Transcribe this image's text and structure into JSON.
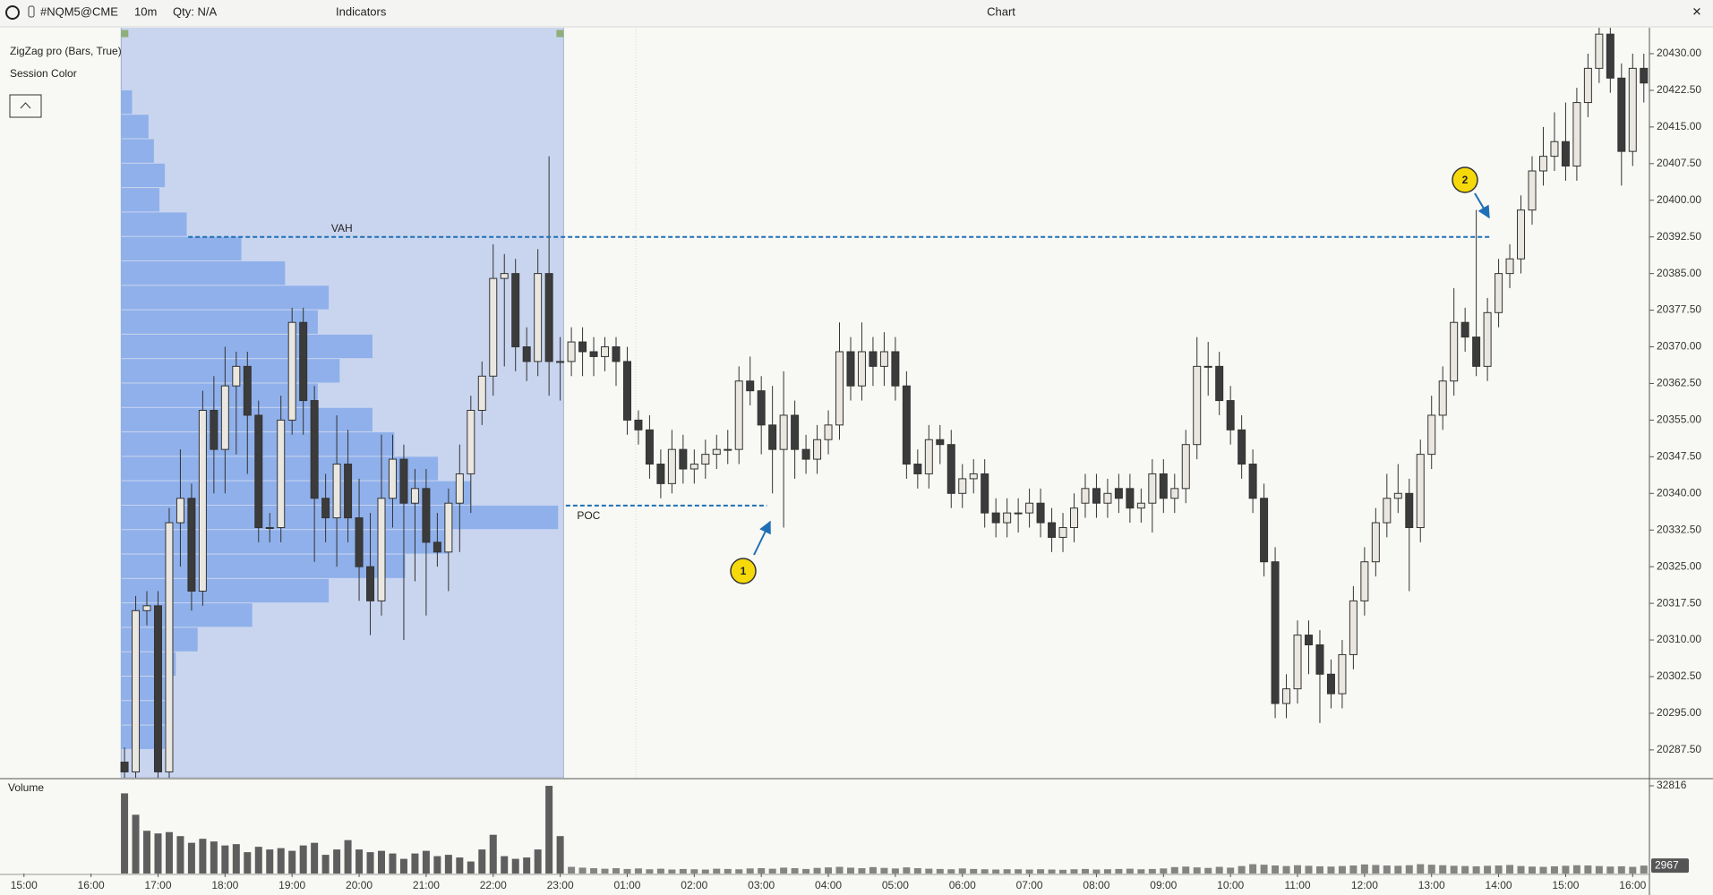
{
  "toolbar": {
    "symbol": "#NQM5@CME",
    "interval": "10m",
    "qty": "Qty: N/A",
    "indicators": "Indicators",
    "title": "Chart"
  },
  "chart_data": {
    "type": "candlestick",
    "indicator_labels": [
      "ZigZag pro (Bars, True)",
      "Session Color"
    ],
    "up_color": "#e9e7e0",
    "down_color": "#3b3b3b",
    "open": [
      20285,
      20283,
      20316,
      20317,
      20283,
      20334,
      20339,
      20320,
      20357,
      20349,
      20362,
      20366,
      20356,
      20333,
      20333,
      20355,
      20375,
      20359,
      20339,
      20335,
      20346,
      20335,
      20325,
      20318,
      20339,
      20347,
      20338,
      20341,
      20330,
      20328,
      20338,
      20344,
      20357,
      20364,
      20384,
      20385,
      20370,
      20367,
      20385,
      20367,
      20367,
      20371,
      20369,
      20368,
      20370,
      20367,
      20355,
      20353,
      20346,
      20342,
      20349,
      20345,
      20346,
      20348,
      20349,
      20349,
      20363,
      20361,
      20354,
      20349,
      20356,
      20349,
      20347,
      20351,
      20354,
      20369,
      20362,
      20369,
      20366,
      20369,
      20362,
      20346,
      20344,
      20351,
      20350,
      20340,
      20343,
      20344,
      20336,
      20334,
      20336,
      20336,
      20338,
      20334,
      20331,
      20333,
      20338,
      20341,
      20338,
      20341,
      20341,
      20337,
      20338,
      20344,
      20339,
      20341,
      20350,
      20366,
      20366,
      20359,
      20353,
      20346,
      20339,
      20326,
      20297,
      20300,
      20311,
      20309,
      20303,
      20299,
      20307,
      20318,
      20326,
      20334,
      20339,
      20340,
      20333,
      20348,
      20356,
      20363,
      20375,
      20372,
      20366,
      20377,
      20385,
      20388,
      20398,
      20406,
      20409,
      20412,
      20407,
      20420,
      20427,
      20434,
      20425,
      20410,
      20427
    ],
    "high": [
      20288,
      20319,
      20320,
      20320,
      20337,
      20349,
      20342,
      20361,
      20364,
      20370,
      20369,
      20369,
      20359,
      20336,
      20360,
      20378,
      20378,
      20362,
      20344,
      20356,
      20353,
      20343,
      20336,
      20352,
      20352,
      20350,
      20345,
      20345,
      20336,
      20341,
      20350,
      20360,
      20367,
      20391,
      20389,
      20388,
      20374,
      20390,
      20409,
      20372,
      20374,
      20374,
      20372,
      20372,
      20372,
      20370,
      20357,
      20356,
      20349,
      20353,
      20352,
      20349,
      20351,
      20352,
      20353,
      20366,
      20368,
      20364,
      20362,
      20365,
      20359,
      20352,
      20354,
      20357,
      20375,
      20372,
      20375,
      20372,
      20373,
      20372,
      20365,
      20349,
      20354,
      20354,
      20353,
      20346,
      20347,
      20347,
      20339,
      20339,
      20339,
      20341,
      20341,
      20337,
      20336,
      20340,
      20344,
      20344,
      20343,
      20344,
      20344,
      20341,
      20347,
      20347,
      20344,
      20353,
      20372,
      20371,
      20369,
      20362,
      20356,
      20349,
      20342,
      20329,
      20303,
      20314,
      20314,
      20312,
      20306,
      20310,
      20321,
      20329,
      20337,
      20344,
      20346,
      20343,
      20351,
      20360,
      20366,
      20382,
      20378,
      20398,
      20380,
      20388,
      20391,
      20401,
      20409,
      20415,
      20418,
      20420,
      20423,
      20430,
      20437,
      20437,
      20428,
      20430,
      20430
    ],
    "low": [
      20280,
      20280,
      20313,
      20280,
      20280,
      20325,
      20316,
      20317,
      20340,
      20340,
      20348,
      20344,
      20330,
      20330,
      20330,
      20352,
      20352,
      20326,
      20330,
      20325,
      20330,
      20318,
      20311,
      20315,
      20333,
      20310,
      20322,
      20315,
      20325,
      20320,
      20328,
      20336,
      20354,
      20360,
      20366,
      20365,
      20363,
      20364,
      20360,
      20359,
      20364,
      20364,
      20364,
      20365,
      20362,
      20352,
      20350,
      20343,
      20339,
      20340,
      20342,
      20342,
      20343,
      20345,
      20346,
      20346,
      20358,
      20348,
      20340,
      20333,
      20343,
      20344,
      20344,
      20348,
      20351,
      20359,
      20359,
      20362,
      20362,
      20359,
      20343,
      20341,
      20341,
      20346,
      20337,
      20337,
      20340,
      20333,
      20331,
      20331,
      20332,
      20333,
      20331,
      20328,
      20328,
      20330,
      20335,
      20335,
      20335,
      20336,
      20334,
      20334,
      20332,
      20336,
      20336,
      20338,
      20347,
      20360,
      20356,
      20350,
      20343,
      20336,
      20323,
      20294,
      20294,
      20297,
      20303,
      20293,
      20296,
      20296,
      20304,
      20315,
      20323,
      20331,
      20336,
      20320,
      20330,
      20345,
      20353,
      20360,
      20369,
      20364,
      20363,
      20374,
      20382,
      20385,
      20395,
      20403,
      20406,
      20404,
      20404,
      20417,
      20424,
      20422,
      20403,
      20407,
      20420
    ],
    "close": [
      20283,
      20316,
      20317,
      20283,
      20334,
      20339,
      20320,
      20357,
      20349,
      20362,
      20366,
      20356,
      20333,
      20333,
      20355,
      20375,
      20359,
      20339,
      20335,
      20346,
      20335,
      20325,
      20318,
      20339,
      20347,
      20338,
      20341,
      20330,
      20328,
      20338,
      20344,
      20357,
      20364,
      20384,
      20385,
      20370,
      20367,
      20385,
      20367,
      20367,
      20371,
      20369,
      20368,
      20370,
      20367,
      20355,
      20353,
      20346,
      20342,
      20349,
      20345,
      20346,
      20348,
      20349,
      20349,
      20363,
      20361,
      20354,
      20349,
      20356,
      20349,
      20347,
      20351,
      20354,
      20369,
      20362,
      20369,
      20366,
      20369,
      20362,
      20346,
      20344,
      20351,
      20350,
      20340,
      20343,
      20344,
      20336,
      20334,
      20336,
      20336,
      20338,
      20334,
      20331,
      20333,
      20337,
      20341,
      20338,
      20340,
      20339,
      20337,
      20338,
      20344,
      20339,
      20341,
      20350,
      20366,
      20366,
      20359,
      20353,
      20346,
      20339,
      20326,
      20297,
      20300,
      20311,
      20309,
      20303,
      20299,
      20307,
      20318,
      20326,
      20334,
      20339,
      20340,
      20333,
      20348,
      20356,
      20363,
      20375,
      20372,
      20366,
      20377,
      20385,
      20388,
      20398,
      20406,
      20409,
      20412,
      20407,
      20420,
      20427,
      20434,
      20425,
      20410,
      20427,
      20424
    ],
    "xlim": [
      -10.85,
      136.5
    ],
    "xticks": [
      {
        "value": -9,
        "label": "15:00"
      },
      {
        "value": -3,
        "label": "16:00"
      },
      {
        "value": 3,
        "label": "17:00"
      },
      {
        "value": 9,
        "label": "18:00"
      },
      {
        "value": 15,
        "label": "19:00"
      },
      {
        "value": 21,
        "label": "20:00"
      },
      {
        "value": 27,
        "label": "21:00"
      },
      {
        "value": 33,
        "label": "22:00"
      },
      {
        "value": 39,
        "label": "23:00"
      },
      {
        "value": 45,
        "label": "01:00"
      },
      {
        "value": 51,
        "label": "02:00"
      },
      {
        "value": 57,
        "label": "03:00"
      },
      {
        "value": 63,
        "label": "04:00"
      },
      {
        "value": 69,
        "label": "05:00"
      },
      {
        "value": 75,
        "label": "06:00"
      },
      {
        "value": 81,
        "label": "07:00"
      },
      {
        "value": 87,
        "label": "08:00"
      },
      {
        "value": 93,
        "label": "09:00"
      },
      {
        "value": 99,
        "label": "10:00"
      },
      {
        "value": 105,
        "label": "11:00"
      },
      {
        "value": 111,
        "label": "12:00"
      },
      {
        "value": 117,
        "label": "13:00"
      },
      {
        "value": 123,
        "label": "14:00"
      },
      {
        "value": 129,
        "label": "15:00"
      },
      {
        "value": 135,
        "label": "16:00"
      }
    ],
    "ylim": [
      20281.8,
      20435.4
    ],
    "yticks": [
      {
        "value": 20430,
        "label": "20430.00"
      },
      {
        "value": 20422.5,
        "label": "20422.50"
      },
      {
        "value": 20415,
        "label": "20415.00"
      },
      {
        "value": 20407.5,
        "label": "20407.50"
      },
      {
        "value": 20400,
        "label": "20400.00"
      },
      {
        "value": 20392.5,
        "label": "20392.50"
      },
      {
        "value": 20385,
        "label": "20385.00"
      },
      {
        "value": 20377.5,
        "label": "20377.50"
      },
      {
        "value": 20370,
        "label": "20370.00"
      },
      {
        "value": 20362.5,
        "label": "20362.50"
      },
      {
        "value": 20355,
        "label": "20355.00"
      },
      {
        "value": 20347.5,
        "label": "20347.50"
      },
      {
        "value": 20340,
        "label": "20340.00"
      },
      {
        "value": 20332.5,
        "label": "20332.50"
      },
      {
        "value": 20325,
        "label": "20325.00"
      },
      {
        "value": 20317.5,
        "label": "20317.50"
      },
      {
        "value": 20310,
        "label": "20310.00"
      },
      {
        "value": 20302.5,
        "label": "20302.50"
      },
      {
        "value": 20295,
        "label": "20295.00"
      },
      {
        "value": 20287.5,
        "label": "20287.50"
      }
    ],
    "session": {
      "start": -0.3,
      "end": 39.3,
      "color": "#c5d2ef"
    },
    "profile": {
      "color": "#8fb0ea",
      "prices": [
        20420,
        20415,
        20410,
        20405,
        20400,
        20395,
        20390,
        20385,
        20380,
        20375,
        20370,
        20365,
        20360,
        20355,
        20350,
        20345,
        20340,
        20335,
        20330,
        20325,
        20320,
        20315,
        20310,
        20305,
        20300,
        20295,
        20290
      ],
      "values": [
        10,
        25,
        30,
        40,
        35,
        60,
        110,
        150,
        190,
        180,
        230,
        200,
        180,
        230,
        250,
        290,
        320,
        400,
        300,
        260,
        190,
        120,
        70,
        50,
        45,
        45,
        40
      ]
    },
    "levels": [
      {
        "label": "VAH",
        "value": 20392.5
      },
      {
        "label": "POC",
        "value": 20337.5
      }
    ],
    "markers": [
      "1",
      "2"
    ],
    "volume": {
      "title": "Volume",
      "color": "#5e5e5e",
      "ylim": [
        0,
        35500
      ],
      "yticks": [
        32816
      ],
      "values": [
        30000,
        22000,
        16000,
        15000,
        15500,
        14000,
        11500,
        13000,
        12000,
        10500,
        11000,
        8000,
        10000,
        9000,
        9500,
        8500,
        10500,
        11500,
        7000,
        9000,
        12500,
        9000,
        8000,
        8500,
        7500,
        5500,
        7500,
        8500,
        6500,
        7000,
        6000,
        4500,
        9000,
        14500,
        6500,
        5500,
        6000,
        9000,
        32816,
        14000,
        2500,
        2200,
        2000,
        1800,
        2000,
        1700,
        1900,
        1600,
        1800,
        1500,
        1700,
        1600,
        1500,
        1800,
        1700,
        1600,
        1900,
        2000,
        1800,
        2200,
        2000,
        1700,
        2100,
        2300,
        2500,
        2200,
        2000,
        2400,
        2100,
        1900,
        2300,
        2000,
        1800,
        1700,
        1600,
        1900,
        1700,
        1600,
        1500,
        1600,
        1600,
        1500,
        1600,
        1500,
        1400,
        1600,
        1700,
        1500,
        1600,
        1700,
        1800,
        1600,
        1700,
        1900,
        2400,
        2600,
        2300,
        2100,
        2500,
        2200,
        2800,
        3500,
        3300,
        3000,
        2800,
        3100,
        2900,
        2700,
        2600,
        2800,
        3000,
        3400,
        3200,
        3000,
        2900,
        3100,
        3500,
        3300,
        3100,
        2900,
        2800,
        2700,
        2900,
        3000,
        3200,
        2800,
        2600,
        2500,
        2700,
        2900,
        3100,
        3000,
        2800,
        2600,
        2700,
        2500,
        2967
      ]
    }
  }
}
